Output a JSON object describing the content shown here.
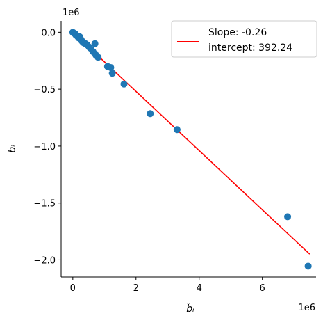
{
  "chart_data": {
    "type": "scatter",
    "xlabel": "b̂ᵢ",
    "ylabel": "bᵢ",
    "x_offset_label": "1e6",
    "y_offset_label": "1e6",
    "x_scale": 1000000,
    "y_scale": 1000000,
    "xlim": [
      -0.37,
      7.7
    ],
    "ylim": [
      -2.15,
      0.1
    ],
    "x_ticks": [
      0,
      2,
      4,
      6
    ],
    "x_tick_labels": [
      "0",
      "2",
      "4",
      "6"
    ],
    "y_ticks": [
      0.0,
      -0.5,
      -1.0,
      -1.5,
      -2.0
    ],
    "y_tick_labels": [
      "0.0",
      "−0.5",
      "−1.0",
      "−1.5",
      "−2.0"
    ],
    "grid": false,
    "legend": {
      "placement": "top-right",
      "entries": [
        "Slope: -0.26",
        "intercept: 392.24"
      ]
    },
    "fit_line": {
      "slope": -0.26,
      "intercept": 392.24,
      "x_range": [
        0,
        7500000
      ],
      "color": "#ff0000"
    },
    "points_color": "#1f77b4",
    "points": [
      {
        "x": 0,
        "y": 0
      },
      {
        "x": 20000,
        "y": -5000
      },
      {
        "x": 50000,
        "y": -10000
      },
      {
        "x": 80000,
        "y": -15000
      },
      {
        "x": 100000,
        "y": -25000
      },
      {
        "x": 130000,
        "y": -30000
      },
      {
        "x": 160000,
        "y": -40000
      },
      {
        "x": 190000,
        "y": -50000
      },
      {
        "x": 220000,
        "y": -40000
      },
      {
        "x": 240000,
        "y": -55000
      },
      {
        "x": 270000,
        "y": -70000
      },
      {
        "x": 300000,
        "y": -80000
      },
      {
        "x": 330000,
        "y": -90000
      },
      {
        "x": 360000,
        "y": -95000
      },
      {
        "x": 400000,
        "y": -100000
      },
      {
        "x": 450000,
        "y": -110000
      },
      {
        "x": 520000,
        "y": -130000
      },
      {
        "x": 580000,
        "y": -150000
      },
      {
        "x": 640000,
        "y": -170000
      },
      {
        "x": 700000,
        "y": -100000
      },
      {
        "x": 730000,
        "y": -200000
      },
      {
        "x": 800000,
        "y": -220000
      },
      {
        "x": 1100000,
        "y": -300000
      },
      {
        "x": 1200000,
        "y": -310000
      },
      {
        "x": 1250000,
        "y": -360000
      },
      {
        "x": 1620000,
        "y": -455000
      },
      {
        "x": 2450000,
        "y": -715000
      },
      {
        "x": 3300000,
        "y": -855000
      },
      {
        "x": 6800000,
        "y": -1620000
      },
      {
        "x": 7450000,
        "y": -2055000
      }
    ]
  }
}
